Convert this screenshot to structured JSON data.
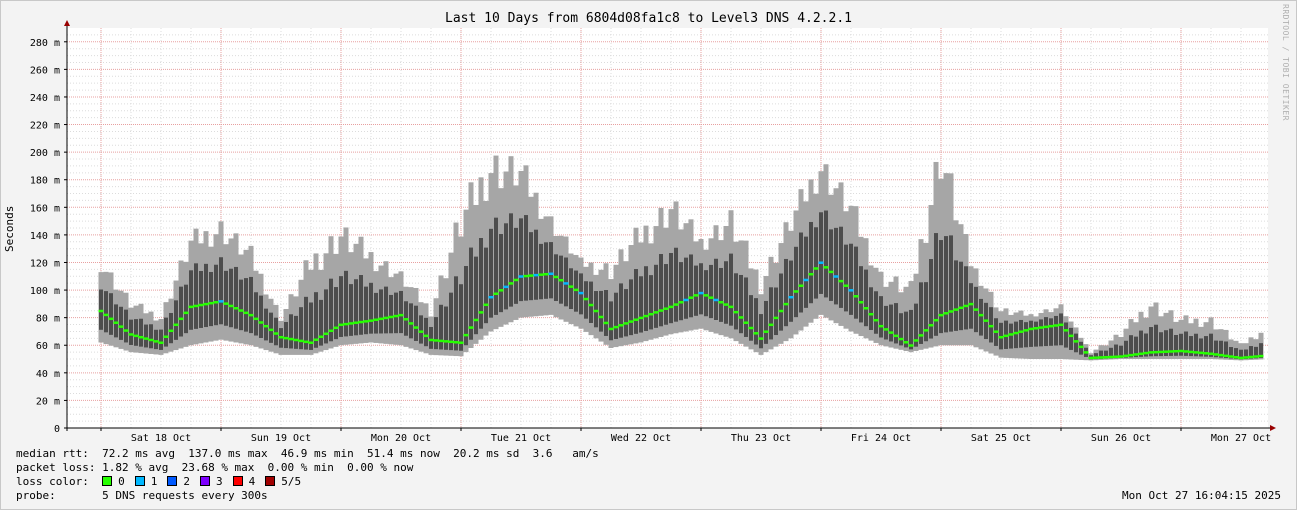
{
  "chart_data": {
    "type": "line",
    "title": "Last 10 Days from 6804d08fa1c8 to Level3 DNS 4.2.2.1",
    "ylabel": "Seconds",
    "xlabel": "",
    "ylim": [
      0,
      290
    ],
    "y_unit": "ms",
    "y_ticks": [
      0,
      20,
      40,
      60,
      80,
      100,
      120,
      140,
      160,
      180,
      200,
      220,
      240,
      260,
      280
    ],
    "y_tick_labels": [
      "0",
      "20 m",
      "40 m",
      "60 m",
      "80 m",
      "100 m",
      "120 m",
      "140 m",
      "160 m",
      "180 m",
      "200 m",
      "220 m",
      "240 m",
      "260 m",
      "280 m"
    ],
    "x_range_days": [
      -0.5,
      9.55
    ],
    "x_tick_labels": [
      "Sat 18 Oct",
      "Sun 19 Oct",
      "Mon 20 Oct",
      "Tue 21 Oct",
      "Wed 22 Oct",
      "Thu 23 Oct",
      "Fri 24 Oct",
      "Sat 25 Oct",
      "Sun 26 Oct",
      "Mon 27 Oct"
    ],
    "grid": true,
    "series": [
      {
        "name": "median rtt",
        "x_days": [
          -0.5,
          -0.25,
          0.0,
          0.25,
          0.5,
          0.75,
          1.0,
          1.25,
          1.5,
          1.75,
          2.0,
          2.25,
          2.5,
          2.75,
          3.0,
          3.25,
          3.5,
          3.75,
          4.0,
          4.25,
          4.5,
          4.75,
          5.0,
          5.25,
          5.5,
          5.75,
          6.0,
          6.25,
          6.5,
          6.75,
          7.0,
          7.25,
          7.5,
          7.75,
          8.0,
          8.25,
          8.5,
          8.75,
          9.0,
          9.25,
          9.55
        ],
        "values": [
          85,
          68,
          62,
          88,
          92,
          82,
          66,
          62,
          75,
          78,
          82,
          64,
          62,
          95,
          110,
          112,
          98,
          72,
          80,
          88,
          98,
          88,
          65,
          95,
          120,
          100,
          74,
          60,
          82,
          90,
          66,
          72,
          75,
          51,
          52,
          55,
          56,
          54,
          51,
          53,
          56
        ]
      },
      {
        "name": "max rtt",
        "values": [
          120,
          90,
          80,
          135,
          145,
          125,
          80,
          120,
          140,
          125,
          110,
          85,
          150,
          190,
          185,
          150,
          120,
          115,
          140,
          160,
          135,
          150,
          105,
          150,
          190,
          160,
          110,
          100,
          200,
          120,
          85,
          82,
          88,
          55,
          68,
          90,
          78,
          78,
          60,
          75,
          80
        ]
      },
      {
        "name": "min rtt",
        "values": [
          62,
          55,
          53,
          60,
          64,
          60,
          53,
          53,
          60,
          62,
          60,
          53,
          52,
          70,
          80,
          82,
          72,
          58,
          62,
          68,
          72,
          65,
          53,
          65,
          82,
          70,
          60,
          55,
          60,
          60,
          51,
          50,
          50,
          49,
          50,
          50,
          50,
          50,
          49,
          50,
          50
        ]
      }
    ]
  },
  "stats": {
    "median_rtt_label": "median rtt:",
    "median_rtt_values": "72.2 ms avg  137.0 ms max  46.9 ms min  51.4 ms now  20.2 ms sd  3.6   am/s",
    "packet_loss_label": "packet loss:",
    "packet_loss_values": "1.82 % avg  23.68 % max  0.00 % min  0.00 % now",
    "loss_color_label": "loss color:",
    "loss_colors": [
      {
        "label": "0",
        "color": "#26ff00"
      },
      {
        "label": "1",
        "color": "#00b8ff"
      },
      {
        "label": "2",
        "color": "#0059ff"
      },
      {
        "label": "3",
        "color": "#7e00ff"
      },
      {
        "label": "4",
        "color": "#ff0000"
      },
      {
        "label": "5/5",
        "color": "#a10000"
      }
    ],
    "probe_label": "probe:",
    "probe_value": "5 DNS requests every 300s",
    "timestamp": "Mon Oct 27 16:04:15 2025"
  },
  "watermark": "RRDTOOL / TOBI OETIKER",
  "colors": {
    "smoke_outer": "#a6a6a6",
    "smoke_inner": "#4d4d4d",
    "major_grid": "#e8a0a0",
    "minor_grid": "#dcdcdc",
    "axis": "#000000",
    "axis_arrow": "#990000"
  }
}
